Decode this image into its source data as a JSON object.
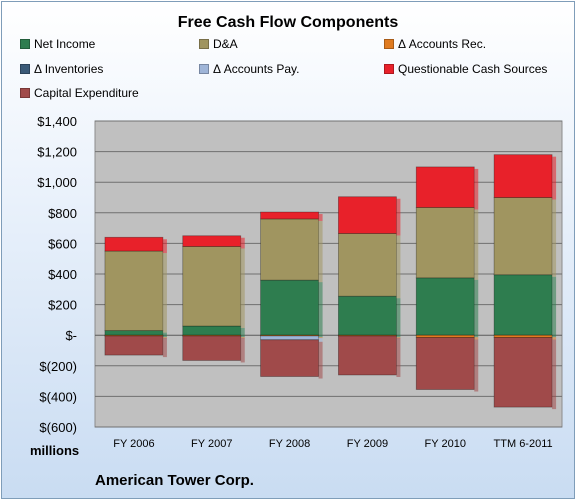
{
  "chart_data": {
    "type": "bar",
    "stacked": true,
    "title": "Free Cash Flow Components",
    "ylabel": "millions",
    "company": "American Tower Corp.",
    "ylim": [
      -600,
      1400
    ],
    "yticks": [
      1400,
      1200,
      1000,
      800,
      600,
      400,
      200,
      0,
      -200,
      -400,
      -600
    ],
    "ytick_labels": [
      "$1,400",
      "$1,200",
      "$1,000",
      "$800",
      "$600",
      "$400",
      "$200",
      "$-",
      "$(200)",
      "$(400)",
      "$(600)"
    ],
    "categories": [
      "FY 2006",
      "FY 2007",
      "FY 2008",
      "FY 2009",
      "FY 2010",
      "TTM 6-2011"
    ],
    "grid": true,
    "legend_position": "top",
    "series": [
      {
        "name": "Net Income",
        "color": "#2e7d4f",
        "values": [
          30,
          60,
          360,
          255,
          375,
          395
        ]
      },
      {
        "name": "D&A",
        "color": "#a09560",
        "values": [
          520,
          520,
          400,
          410,
          460,
          505
        ]
      },
      {
        "name": "Δ Accounts Rec.",
        "color": "#e07b20",
        "values": [
          -5,
          -5,
          -5,
          -5,
          -15,
          -15
        ]
      },
      {
        "name": "Δ Inventories",
        "color": "#3a5a78",
        "values": [
          0,
          0,
          0,
          0,
          0,
          0
        ]
      },
      {
        "name": "Δ Accounts Pay.",
        "color": "#9fb5d8",
        "values": [
          0,
          0,
          -25,
          0,
          0,
          0
        ]
      },
      {
        "name": "Questionable Cash Sources",
        "color": "#e8212a",
        "values": [
          90,
          70,
          45,
          240,
          265,
          280
        ]
      },
      {
        "name": "Capital Expenditure",
        "color": "#a04a4a",
        "values": [
          -125,
          -160,
          -240,
          -255,
          -340,
          -455
        ]
      }
    ]
  }
}
